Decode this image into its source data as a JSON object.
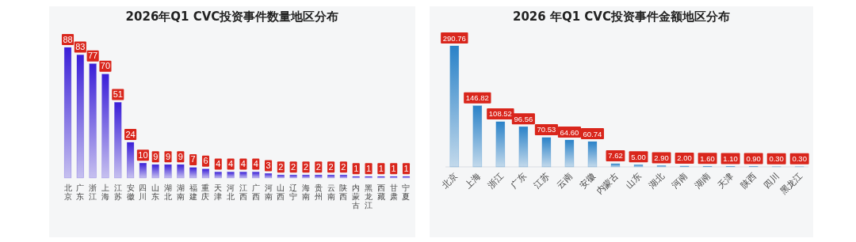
{
  "chart_data": [
    {
      "type": "bar",
      "title": "2026年Q1 CVC投资事件数量地区分布",
      "categories": [
        "北京",
        "广东",
        "浙江",
        "上海",
        "江苏",
        "安徽",
        "四川",
        "山东",
        "湖北",
        "湖南",
        "福建",
        "重庆",
        "天津",
        "河北",
        "江西",
        "广西",
        "河南",
        "山西",
        "辽宁",
        "海南",
        "贵州",
        "云南",
        "陕西",
        "内蒙古",
        "黑龙江",
        "西藏",
        "甘肃",
        "宁夏"
      ],
      "values": [
        88,
        83,
        77,
        70,
        51,
        24,
        10,
        9,
        9,
        9,
        7,
        6,
        4,
        4,
        4,
        4,
        3,
        2,
        2,
        2,
        2,
        2,
        2,
        1,
        1,
        1,
        1,
        1
      ],
      "color": "#3a1fd8",
      "data_labels": true
    },
    {
      "type": "bar",
      "title": "2026 年Q1 CVC投资事件金额地区分布",
      "categories": [
        "北京",
        "上海",
        "浙江",
        "广东",
        "江苏",
        "云南",
        "安徽",
        "内蒙古",
        "山东",
        "湖北",
        "河南",
        "湖南",
        "天津",
        "陕西",
        "四川",
        "黑龙江"
      ],
      "values": [
        290.76,
        146.82,
        108.52,
        96.56,
        70.53,
        64.6,
        60.74,
        7.62,
        5.0,
        2.9,
        2.0,
        1.6,
        1.1,
        0.9,
        0.3,
        0.3
      ],
      "value_labels": [
        "290.76",
        "146.82",
        "108.52",
        "96.56",
        "70.53",
        "64.60",
        "60.74",
        "7.62",
        "5.00",
        "2.90",
        "2.00",
        "1.60",
        "1.10",
        "0.90",
        "0.30",
        "0.30"
      ],
      "color": "#2a82c8"
    }
  ]
}
